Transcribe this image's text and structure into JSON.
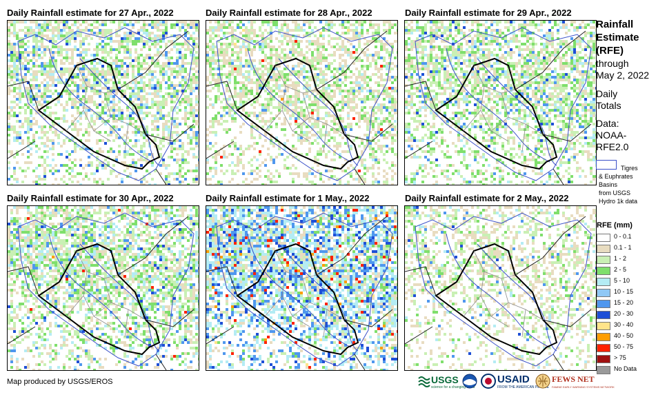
{
  "panels": [
    {
      "title": "Daily Rainfall estimate for 27 Apr., 2022"
    },
    {
      "title": "Daily Rainfall estimate for 28 Apr., 2022"
    },
    {
      "title": "Daily Rainfall estimate for 29 Apr., 2022"
    },
    {
      "title": "Daily Rainfall estimate for 30 Apr., 2022"
    },
    {
      "title": "Daily Rainfall estimate for 1 May., 2022"
    },
    {
      "title": "Daily Rainfall estimate for 2 May., 2022"
    }
  ],
  "sidebar": {
    "title_line1": "Rainfall",
    "title_line2": "Estimate",
    "title_line3": "(RFE)",
    "through": "through",
    "date": "May 2, 2022",
    "daily": "Daily",
    "totals": "Totals",
    "data_label": "Data:",
    "data_src1": "NOAA-",
    "data_src2": "RFE2.0",
    "basin_line1": "Tigres",
    "basin_line2": "& Euphrates",
    "basin_line3": "Basins",
    "basin_line4": "from USGS",
    "basin_line5": "Hydro 1k data"
  },
  "legend": {
    "title": "RFE (mm)",
    "items": [
      {
        "label": "0 - 0.1",
        "color": "#ffffff"
      },
      {
        "label": "0.1 - 1",
        "color": "#e8dcc0"
      },
      {
        "label": "1 - 2",
        "color": "#c9f0b4"
      },
      {
        "label": "2 - 5",
        "color": "#7fdf6c"
      },
      {
        "label": "5 - 10",
        "color": "#b4ecf4"
      },
      {
        "label": "10 - 15",
        "color": "#8fc8f5"
      },
      {
        "label": "15 - 20",
        "color": "#4f97ee"
      },
      {
        "label": "20 - 30",
        "color": "#1e4fd6"
      },
      {
        "label": "30 - 40",
        "color": "#ffe48a"
      },
      {
        "label": "40 - 50",
        "color": "#ff9d00"
      },
      {
        "label": "50 - 75",
        "color": "#ff2200"
      },
      {
        "label": "> 75",
        "color": "#a01010"
      },
      {
        "label": "No Data",
        "color": "#9a9a9a"
      }
    ]
  },
  "footer": {
    "credit": "Map produced by USGS/EROS"
  },
  "logos": {
    "usgs": "USGS",
    "usgs_tagline": "science for a changing world",
    "usaid": "USAID",
    "usaid_tagline": "FROM THE AMERICAN PEOPLE",
    "fews": "FEWS NET",
    "fews_tagline": "FAMINE EARLY WARNING SYSTEMS NETWORK"
  }
}
